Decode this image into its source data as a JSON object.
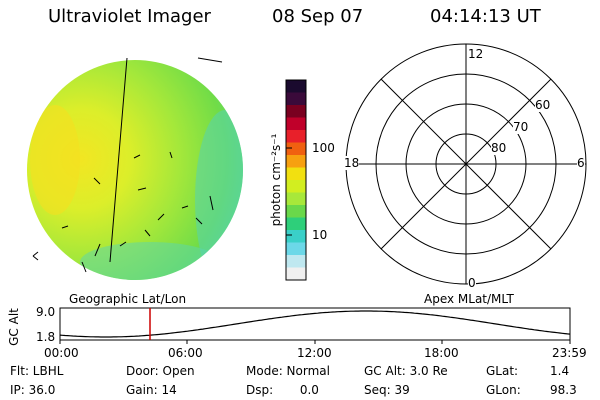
{
  "header": {
    "instrument": "Ultraviolet Imager",
    "date": "08 Sep 07",
    "time": "04:14:13 UT"
  },
  "colorbar": {
    "label": "photon cm⁻²s⁻¹",
    "ticks": [
      "100",
      "10"
    ],
    "colors": [
      "#1a0a2e",
      "#3a0a3a",
      "#7a0020",
      "#c0002a",
      "#e8202a",
      "#f06010",
      "#f7a010",
      "#f2e010",
      "#d2ee20",
      "#a8e83a",
      "#6ad84a",
      "#2ecf7a",
      "#3ad0c8",
      "#6cd8e8",
      "#bfe8f0",
      "#f0f0f0"
    ]
  },
  "polar_plot": {
    "mlt_labels": [
      "12",
      "18",
      "6",
      "0"
    ],
    "lat_labels": [
      "60",
      "70",
      "80"
    ]
  },
  "timeline": {
    "ylabel": "GC Alt",
    "yticks": [
      "9.0",
      "1.8"
    ],
    "left_title": "Geographic Lat/Lon",
    "right_title": "Apex MLat/MLT",
    "xticks": [
      "00:00",
      "06:00",
      "12:00",
      "18:00",
      "23:59"
    ],
    "marker_color": "#cc0000"
  },
  "info": {
    "flt": "Flt: LBHL",
    "ip": "IP: 36.0",
    "door": "Door: Open",
    "gain": "Gain: 14",
    "mode": "Mode: Normal",
    "dsp": "Dsp:       0.0",
    "gcalt": "GC Alt: 3.0 Re",
    "seq": "Seq: 39",
    "glat": "GLat:",
    "glat_val": "1.4",
    "glon": "GLon:",
    "glon_val": "98.3"
  }
}
